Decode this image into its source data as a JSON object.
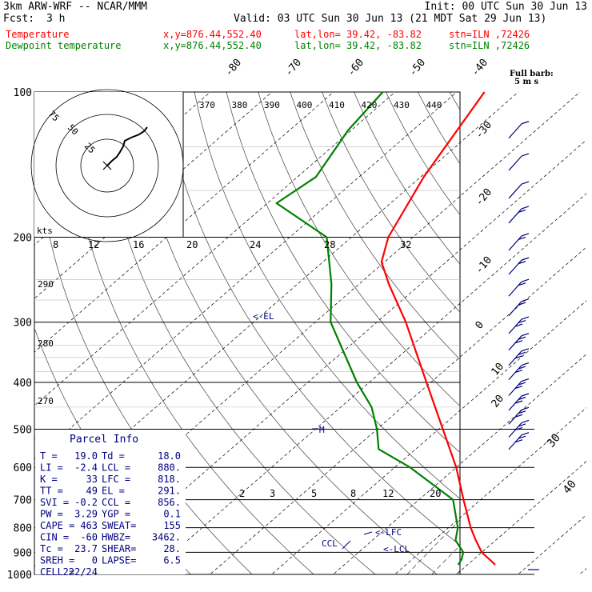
{
  "header": {
    "model": "3km ARW-WRF -- NCAR/MMM",
    "init": "Init: 00 UTC Sun 30 Jun 13",
    "fcst_label": "Fcst:",
    "fcst_value": "3 h",
    "valid": "Valid: 03 UTC Sun 30 Jun 13 (21 MDT Sat 29 Jun 13)",
    "temp_line": {
      "label": "Temperature",
      "xy": "x,y=876.44,552.40",
      "latlon": "lat,lon= 39.42, -83.82",
      "stn": "stn=ILN ,72426"
    },
    "dew_line": {
      "label": "Dewpoint temperature",
      "xy": "x,y=876.44,552.40",
      "latlon": "lat,lon= 39.42, -83.82",
      "stn": "stn=ILN ,72426"
    },
    "barb_key": "Full barb:",
    "barb_unit": "5 m s",
    "temp_color": "#ff0000",
    "dew_color": "#008000"
  },
  "chart_data": {
    "type": "line",
    "title": "Skew-T log-p sounding",
    "y_axis": {
      "unit": "hPa",
      "scale": "log",
      "ticks": [
        100,
        200,
        300,
        400,
        500,
        600,
        700,
        800,
        900,
        1000
      ]
    },
    "isotherm_labels": [
      "-80",
      "-70",
      "-60",
      "-50",
      "-40",
      "-30",
      "-20",
      "-10",
      "0",
      "10",
      "20",
      "30",
      "40"
    ],
    "theta_e_labels": [
      "370",
      "380",
      "390",
      "400",
      "410",
      "420",
      "430",
      "440"
    ],
    "mixing_ratio_labels": [
      "2",
      "3",
      "5",
      "8",
      "12",
      "20"
    ],
    "theta_labels": [
      "290",
      "280",
      "270"
    ],
    "wind_speed_labels": [
      "8",
      "12",
      "16",
      "20",
      "24",
      "28",
      "32"
    ],
    "hodograph": {
      "unit": "kts",
      "ring_labels": [
        "75",
        "50",
        "25"
      ]
    },
    "series": [
      {
        "name": "Temperature",
        "color": "#ff0000",
        "points": [
          {
            "p": 955,
            "t": 24.5
          },
          {
            "p": 930,
            "t": 22.5
          },
          {
            "p": 900,
            "t": 20.0
          },
          {
            "p": 850,
            "t": 16.8
          },
          {
            "p": 800,
            "t": 13.6
          },
          {
            "p": 700,
            "t": 7.2
          },
          {
            "p": 600,
            "t": 0.0
          },
          {
            "p": 500,
            "t": -9.3
          },
          {
            "p": 400,
            "t": -20.7
          },
          {
            "p": 300,
            "t": -35.3
          },
          {
            "p": 250,
            "t": -45.2
          },
          {
            "p": 225,
            "t": -50.5
          },
          {
            "p": 200,
            "t": -54.0
          },
          {
            "p": 150,
            "t": -59.5
          },
          {
            "p": 100,
            "t": -65.5
          }
        ]
      },
      {
        "name": "Dewpoint temperature",
        "color": "#008000",
        "points": [
          {
            "p": 955,
            "t": 18.5
          },
          {
            "p": 930,
            "t": 18.0
          },
          {
            "p": 900,
            "t": 17.0
          },
          {
            "p": 850,
            "t": 13.5
          },
          {
            "p": 800,
            "t": 11.5
          },
          {
            "p": 700,
            "t": 5.5
          },
          {
            "p": 600,
            "t": -7.5
          },
          {
            "p": 550,
            "t": -16.0
          },
          {
            "p": 500,
            "t": -20.0
          },
          {
            "p": 450,
            "t": -25.0
          },
          {
            "p": 400,
            "t": -32.0
          },
          {
            "p": 300,
            "t": -47.5
          },
          {
            "p": 250,
            "t": -54.5
          },
          {
            "p": 200,
            "t": -64.0
          },
          {
            "p": 170,
            "t": -78.5
          },
          {
            "p": 150,
            "t": -77.0
          },
          {
            "p": 120,
            "t": -80.5
          },
          {
            "p": 100,
            "t": -82.0
          }
        ]
      }
    ],
    "annotations": {
      "el": "<-EL",
      "lfc": "<-LFC",
      "lcl": "<-LCL",
      "ccl": "CCL",
      "freezing": "M"
    }
  },
  "parcel_info": {
    "title": "Parcel Info",
    "rows": [
      [
        "T   =",
        "19.0",
        "Td =",
        "18.0"
      ],
      [
        "LI  =",
        "-2.4",
        "LCL =",
        "880."
      ],
      [
        "K   =",
        "33",
        "LFC =",
        "818."
      ],
      [
        "TT  =",
        "49",
        "EL  =",
        "291."
      ],
      [
        "SVI =",
        "-0.2",
        "CCL =",
        "856."
      ],
      [
        "PW  =",
        "3.29",
        "YGP =",
        "0.1"
      ],
      [
        "CAPE =",
        "463",
        "SWEAT=",
        "155"
      ],
      [
        "CIN  =",
        "-60",
        "HWBZ=",
        "3462."
      ],
      [
        "Tc  =",
        "23.7",
        "SHEAR=",
        "28."
      ],
      [
        "SREH =",
        "0",
        "LAPSE=",
        "6.5"
      ],
      [
        "CELL =",
        "222/24",
        "",
        ""
      ]
    ]
  }
}
